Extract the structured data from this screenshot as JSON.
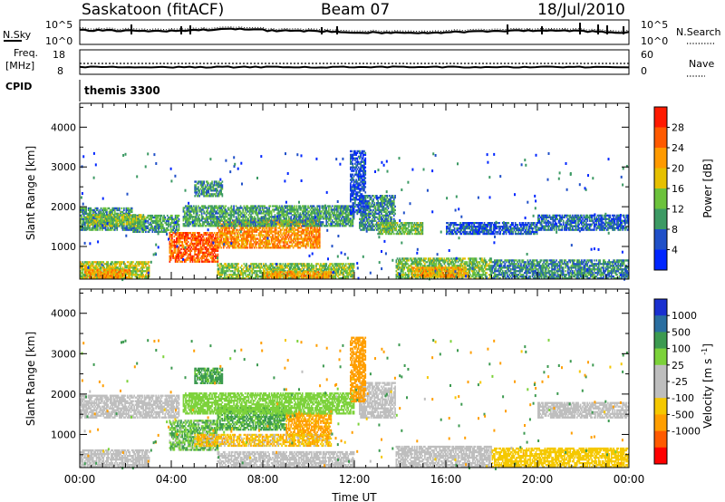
{
  "header": {
    "station": "Saskatoon (fitACF)",
    "beam": "Beam 07",
    "date": "18/Jul/2010"
  },
  "side_labels": {
    "nsky": "N.Sky",
    "nsearch": "N.Search",
    "freq_line1": "Freq.",
    "freq_line2": "[MHz]",
    "nave": "Nave",
    "cpid": "CPID",
    "cpid_value": "themis 3300"
  },
  "noise_panel": {
    "left_ticks": [
      "10^5",
      "10^0"
    ],
    "right_ticks": [
      "10^5",
      "10^0"
    ]
  },
  "freq_panel": {
    "left_ticks": [
      "18",
      "8"
    ],
    "right_ticks": [
      "60",
      "0"
    ]
  },
  "colors": {
    "power": [
      "#0026ff",
      "#2050c8",
      "#3c9a64",
      "#6cc23c",
      "#e6c000",
      "#ff9a00",
      "#ff5a00",
      "#ff1a00"
    ],
    "velocity": [
      "#ff0000",
      "#ff5a00",
      "#ff9e00",
      "#f5c800",
      "#bebebe",
      "#bebebe",
      "#7cd23a",
      "#3c9a50",
      "#2a6ea0",
      "#1a30d0"
    ]
  },
  "chart_data": [
    {
      "type": "heatmap",
      "name": "power",
      "xlabel": "",
      "ylabel": "Slant Range [km]",
      "colorbar_label": "Power [dB]",
      "colorbar_ticks": [
        "28",
        "24",
        "20",
        "16",
        "12",
        "8",
        "4"
      ],
      "xlim_hours": [
        0,
        24
      ],
      "ylim": [
        180,
        4600
      ],
      "yticks": [
        "4000",
        "3000",
        "2000",
        "1000"
      ],
      "xticks": [
        "00:00",
        "04:00",
        "08:00",
        "12:00",
        "16:00",
        "20:00",
        "00:00"
      ],
      "bands": [
        {
          "t0": 0.0,
          "t1": 2.3,
          "r0": 1400,
          "r1": 1950,
          "v": 10
        },
        {
          "t0": 2.3,
          "t1": 4.3,
          "r0": 1350,
          "r1": 1800,
          "v": 11
        },
        {
          "t0": 0.3,
          "t1": 2.8,
          "r0": 1500,
          "r1": 1800,
          "v": 14
        },
        {
          "t0": 0.0,
          "t1": 3.0,
          "r0": 180,
          "r1": 600,
          "v": 16
        },
        {
          "t0": 0.2,
          "t1": 2.2,
          "r0": 200,
          "r1": 420,
          "v": 22
        },
        {
          "t0": 3.9,
          "t1": 6.0,
          "r0": 600,
          "r1": 1350,
          "v": 26
        },
        {
          "t0": 6.0,
          "t1": 10.5,
          "r0": 950,
          "r1": 1650,
          "v": 23
        },
        {
          "t0": 4.5,
          "t1": 12.0,
          "r0": 1500,
          "r1": 2000,
          "v": 11
        },
        {
          "t0": 5.0,
          "t1": 6.2,
          "r0": 2250,
          "r1": 2650,
          "v": 10
        },
        {
          "t0": 6.0,
          "t1": 12.0,
          "r0": 180,
          "r1": 550,
          "v": 14
        },
        {
          "t0": 8.0,
          "t1": 11.0,
          "r0": 200,
          "r1": 380,
          "v": 21
        },
        {
          "t0": 12.2,
          "t1": 13.8,
          "r0": 1400,
          "r1": 2300,
          "v": 9
        },
        {
          "t0": 13.0,
          "t1": 15.0,
          "r0": 1300,
          "r1": 1600,
          "v": 13
        },
        {
          "t0": 13.8,
          "t1": 18.0,
          "r0": 180,
          "r1": 700,
          "v": 13
        },
        {
          "t0": 14.5,
          "t1": 17.0,
          "r0": 220,
          "r1": 450,
          "v": 21
        },
        {
          "t0": 18.0,
          "t1": 24.0,
          "r0": 180,
          "r1": 650,
          "v": 9
        },
        {
          "t0": 20.0,
          "t1": 24.0,
          "r0": 1400,
          "r1": 1800,
          "v": 7
        },
        {
          "t0": 16.0,
          "t1": 20.0,
          "r0": 1300,
          "r1": 1600,
          "v": 6
        },
        {
          "t0": 11.8,
          "t1": 12.5,
          "r0": 1800,
          "r1": 3400,
          "v": 5
        }
      ]
    },
    {
      "type": "heatmap",
      "name": "velocity",
      "xlabel": "Time UT",
      "ylabel": "Slant Range [km]",
      "colorbar_label": "Velocity [m s^-1]",
      "colorbar_ticks": [
        "1000",
        "500",
        "100",
        "25",
        "-25",
        "-100",
        "-500",
        "-1000"
      ],
      "xlim_hours": [
        0,
        24
      ],
      "ylim": [
        180,
        4600
      ],
      "yticks": [
        "4000",
        "3000",
        "2000",
        "1000"
      ],
      "xticks": [
        "00:00",
        "04:00",
        "08:00",
        "12:00",
        "16:00",
        "20:00",
        "00:00"
      ],
      "bands": [
        {
          "t0": 0.0,
          "t1": 4.3,
          "r0": 1400,
          "r1": 1950,
          "v": 0
        },
        {
          "t0": 0.0,
          "t1": 3.0,
          "r0": 180,
          "r1": 600,
          "v": 0
        },
        {
          "t0": 3.9,
          "t1": 6.0,
          "r0": 600,
          "r1": 1350,
          "v": 80
        },
        {
          "t0": 6.0,
          "t1": 9.0,
          "r0": 1100,
          "r1": 1650,
          "v": 120
        },
        {
          "t0": 9.0,
          "t1": 11.0,
          "r0": 950,
          "r1": 1500,
          "v": -150
        },
        {
          "t0": 5.0,
          "t1": 11.0,
          "r0": 700,
          "r1": 1000,
          "v": -70
        },
        {
          "t0": 4.5,
          "t1": 12.0,
          "r0": 1500,
          "r1": 2000,
          "v": 60
        },
        {
          "t0": 5.0,
          "t1": 6.2,
          "r0": 2250,
          "r1": 2650,
          "v": 150
        },
        {
          "t0": 6.0,
          "t1": 12.0,
          "r0": 180,
          "r1": 550,
          "v": 0
        },
        {
          "t0": 12.2,
          "t1": 13.8,
          "r0": 1400,
          "r1": 2300,
          "v": 0
        },
        {
          "t0": 13.8,
          "t1": 18.0,
          "r0": 180,
          "r1": 700,
          "v": 0
        },
        {
          "t0": 18.0,
          "t1": 24.0,
          "r0": 180,
          "r1": 650,
          "v": -40
        },
        {
          "t0": 20.0,
          "t1": 24.0,
          "r0": 1400,
          "r1": 1800,
          "v": 10
        },
        {
          "t0": 11.8,
          "t1": 12.5,
          "r0": 1800,
          "r1": 3400,
          "v": -200
        }
      ]
    }
  ]
}
